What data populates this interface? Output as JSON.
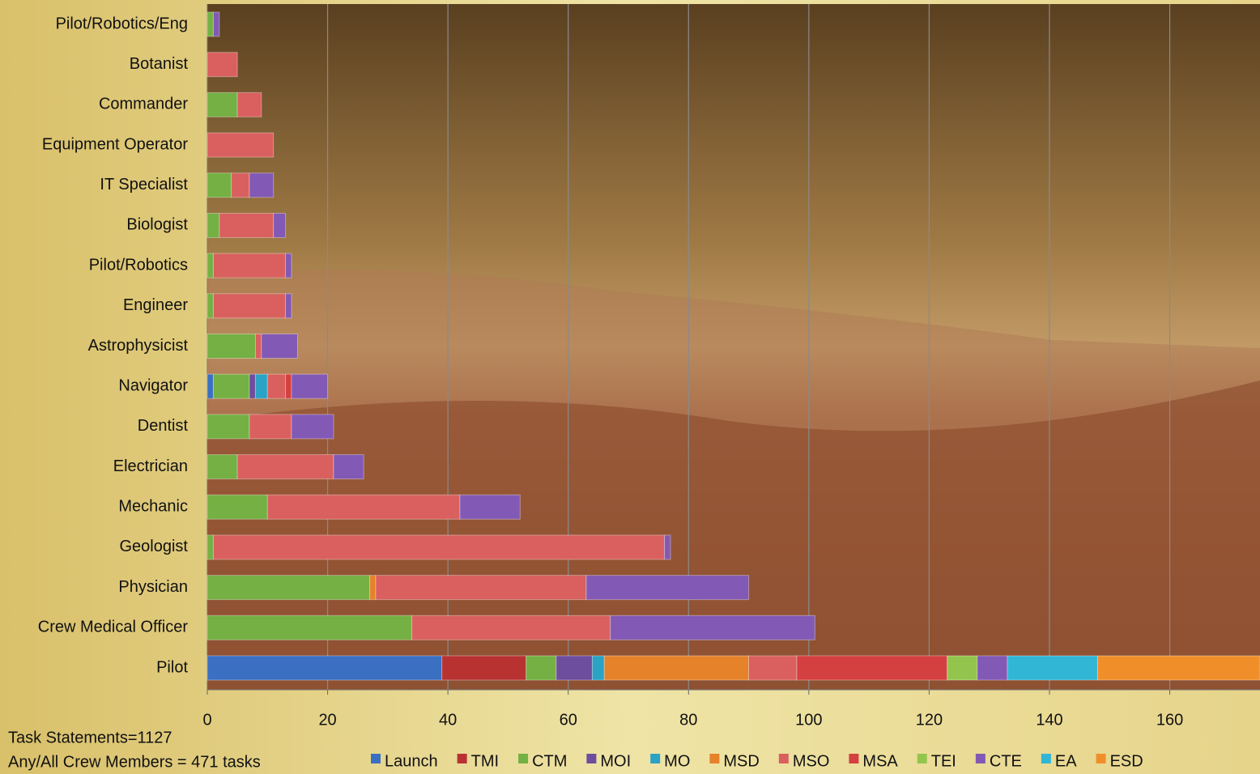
{
  "chart_data": {
    "type": "stacked-horizontal-bar",
    "categories": [
      "Pilot/Robotics/Eng",
      "Botanist",
      "Commander",
      "Equipment Operator",
      "IT Specialist",
      "Biologist",
      "Pilot/Robotics",
      "Engineer",
      "Astrophysicist",
      "Navigator",
      "Dentist",
      "Electrician",
      "Mechanic",
      "Geologist",
      "Physician",
      "Crew Medical Officer",
      "Pilot"
    ],
    "series": [
      {
        "name": "Launch",
        "color": "#3b6fc2",
        "values": [
          0,
          0,
          0,
          0,
          0,
          0,
          0,
          0,
          0,
          1,
          0,
          0,
          0,
          0,
          0,
          0,
          39
        ]
      },
      {
        "name": "TMI",
        "color": "#b83232",
        "values": [
          0,
          0,
          0,
          0,
          0,
          0,
          0,
          0,
          0,
          0,
          0,
          0,
          0,
          0,
          0,
          0,
          14
        ]
      },
      {
        "name": "CTM",
        "color": "#74b043",
        "values": [
          1,
          0,
          5,
          0,
          4,
          2,
          1,
          1,
          8,
          6,
          7,
          5,
          10,
          1,
          27,
          34,
          5
        ]
      },
      {
        "name": "MOI",
        "color": "#6d4d9e",
        "values": [
          0,
          0,
          0,
          0,
          0,
          0,
          0,
          0,
          0,
          1,
          0,
          0,
          0,
          0,
          0,
          0,
          6
        ]
      },
      {
        "name": "MO",
        "color": "#2aa3c4",
        "values": [
          0,
          0,
          0,
          0,
          0,
          0,
          0,
          0,
          0,
          2,
          0,
          0,
          0,
          0,
          0,
          0,
          2
        ]
      },
      {
        "name": "MSD",
        "color": "#e5822a",
        "values": [
          0,
          0,
          0,
          0,
          0,
          0,
          0,
          0,
          0,
          0,
          0,
          0,
          0,
          0,
          1,
          0,
          24
        ]
      },
      {
        "name": "MSO",
        "color": "#d9605e",
        "values": [
          0,
          5,
          4,
          11,
          3,
          9,
          12,
          12,
          1,
          3,
          7,
          16,
          32,
          75,
          35,
          33,
          8
        ]
      },
      {
        "name": "MSA",
        "color": "#d4403f",
        "values": [
          0,
          0,
          0,
          0,
          0,
          0,
          0,
          0,
          0,
          1,
          0,
          0,
          0,
          0,
          0,
          0,
          25
        ]
      },
      {
        "name": "TEI",
        "color": "#93c54e",
        "values": [
          0,
          0,
          0,
          0,
          0,
          0,
          0,
          0,
          0,
          0,
          0,
          0,
          0,
          0,
          0,
          0,
          5
        ]
      },
      {
        "name": "CTE",
        "color": "#8259b4",
        "values": [
          1,
          0,
          0,
          0,
          4,
          2,
          1,
          1,
          6,
          6,
          7,
          5,
          10,
          1,
          27,
          34,
          5
        ]
      },
      {
        "name": "EA",
        "color": "#31b6d6",
        "values": [
          0,
          0,
          0,
          0,
          0,
          0,
          0,
          0,
          0,
          0,
          0,
          0,
          0,
          0,
          0,
          0,
          15
        ]
      },
      {
        "name": "ESD",
        "color": "#f08f2a",
        "values": [
          0,
          0,
          0,
          0,
          0,
          0,
          0,
          0,
          0,
          0,
          0,
          0,
          0,
          0,
          0,
          0,
          27
        ]
      }
    ],
    "xlim": [
      0,
      175
    ],
    "xticks": [
      0,
      20,
      40,
      60,
      80,
      100,
      120,
      140,
      160
    ],
    "grid": true,
    "annotations": [
      "Task Statements=1127",
      "Any/All Crew Members = 471 tasks"
    ]
  }
}
